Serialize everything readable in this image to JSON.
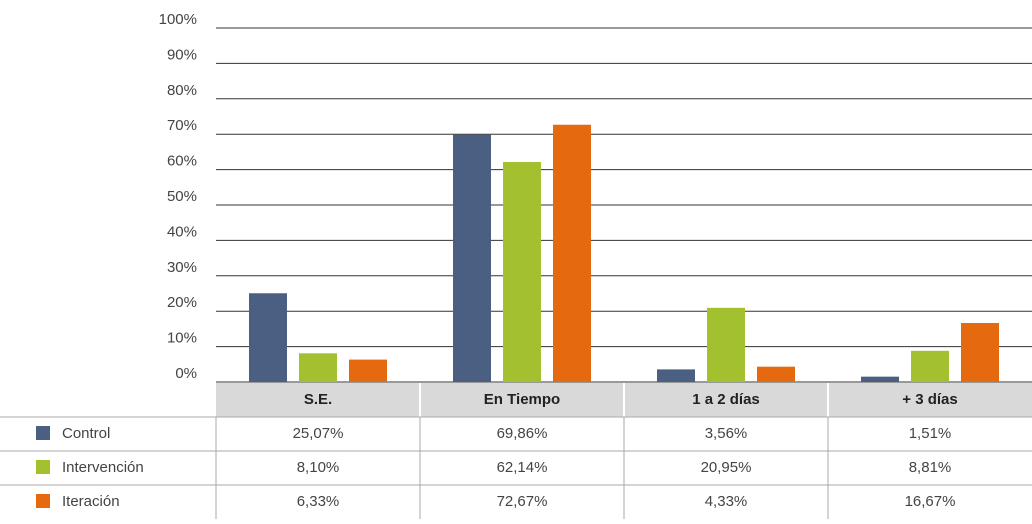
{
  "chart_data": {
    "type": "bar",
    "categories": [
      "S.E.",
      "En Tiempo",
      "1 a 2 días",
      "+ 3 días"
    ],
    "series": [
      {
        "name": "Control",
        "color": "#4a5f82",
        "values": [
          25.07,
          69.86,
          3.56,
          1.51
        ],
        "value_labels": [
          "25,07%",
          "69,86%",
          "3,56%",
          "1,51%"
        ]
      },
      {
        "name": "Intervención",
        "color": "#a3c02e",
        "values": [
          8.1,
          62.14,
          20.95,
          8.81
        ],
        "value_labels": [
          "8,10%",
          "62,14%",
          "20,95%",
          "8,81%"
        ]
      },
      {
        "name": "Iteración",
        "color": "#e5690f",
        "values": [
          6.33,
          72.67,
          4.33,
          16.67
        ],
        "value_labels": [
          "6,33%",
          "72,67%",
          "4,33%",
          "16,67%"
        ]
      }
    ],
    "ylim": [
      0,
      100
    ],
    "yticks": [
      {
        "value": 0,
        "label": "0%"
      },
      {
        "value": 10,
        "label": "10%"
      },
      {
        "value": 20,
        "label": "20%"
      },
      {
        "value": 30,
        "label": "30%"
      },
      {
        "value": 40,
        "label": "40%"
      },
      {
        "value": 50,
        "label": "50%"
      },
      {
        "value": 60,
        "label": "60%"
      },
      {
        "value": 70,
        "label": "70%"
      },
      {
        "value": 80,
        "label": "80%"
      },
      {
        "value": 90,
        "label": "90%"
      },
      {
        "value": 100,
        "label": "100%"
      }
    ],
    "grid": true
  }
}
